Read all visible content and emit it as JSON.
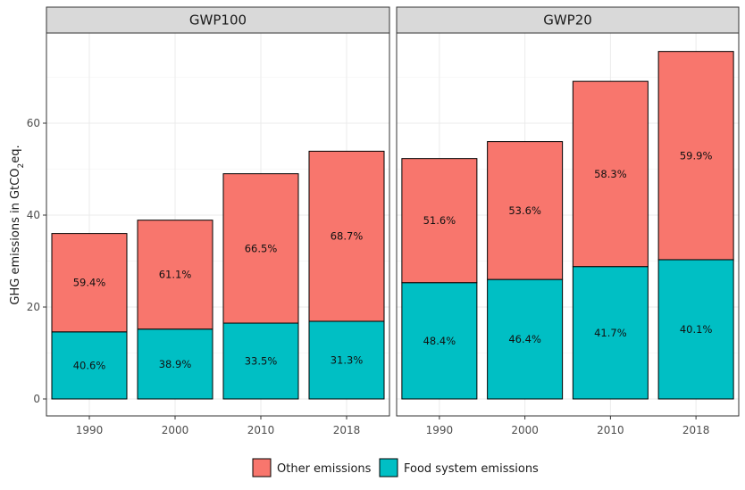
{
  "chart_data": {
    "type": "bar",
    "stacked": true,
    "ylabel_prefix": "GHG emissions in GtCO",
    "ylabel_sub": "2",
    "ylabel_suffix": "eq.",
    "ylim": [
      0,
      80
    ],
    "yticks": [
      0,
      20,
      40,
      60
    ],
    "grid": true,
    "legend_position": "bottom",
    "categories": [
      "1990",
      "2000",
      "2010",
      "2018"
    ],
    "legend": [
      {
        "name": "Other emissions",
        "color": "#F8766D"
      },
      {
        "name": "Food system emissions",
        "color": "#00BFC4"
      }
    ],
    "panels": [
      {
        "title": "GWP100",
        "series": [
          {
            "name": "Food system emissions",
            "color": "#00BFC4",
            "values": [
              14.6,
              15.2,
              16.5,
              16.9
            ],
            "labels": [
              "40.6%",
              "38.9%",
              "33.5%",
              "31.3%"
            ]
          },
          {
            "name": "Other emissions",
            "color": "#F8766D",
            "values": [
              21.4,
              23.7,
              32.5,
              37.0
            ],
            "labels": [
              "59.4%",
              "61.1%",
              "66.5%",
              "68.7%"
            ]
          }
        ]
      },
      {
        "title": "GWP20",
        "series": [
          {
            "name": "Food system emissions",
            "color": "#00BFC4",
            "values": [
              25.3,
              26.0,
              28.8,
              30.3
            ],
            "labels": [
              "48.4%",
              "46.4%",
              "41.7%",
              "40.1%"
            ]
          },
          {
            "name": "Other emissions",
            "color": "#F8766D",
            "values": [
              27.0,
              30.0,
              40.3,
              45.3
            ],
            "labels": [
              "51.6%",
              "53.6%",
              "58.3%",
              "59.9%"
            ]
          }
        ]
      }
    ]
  }
}
